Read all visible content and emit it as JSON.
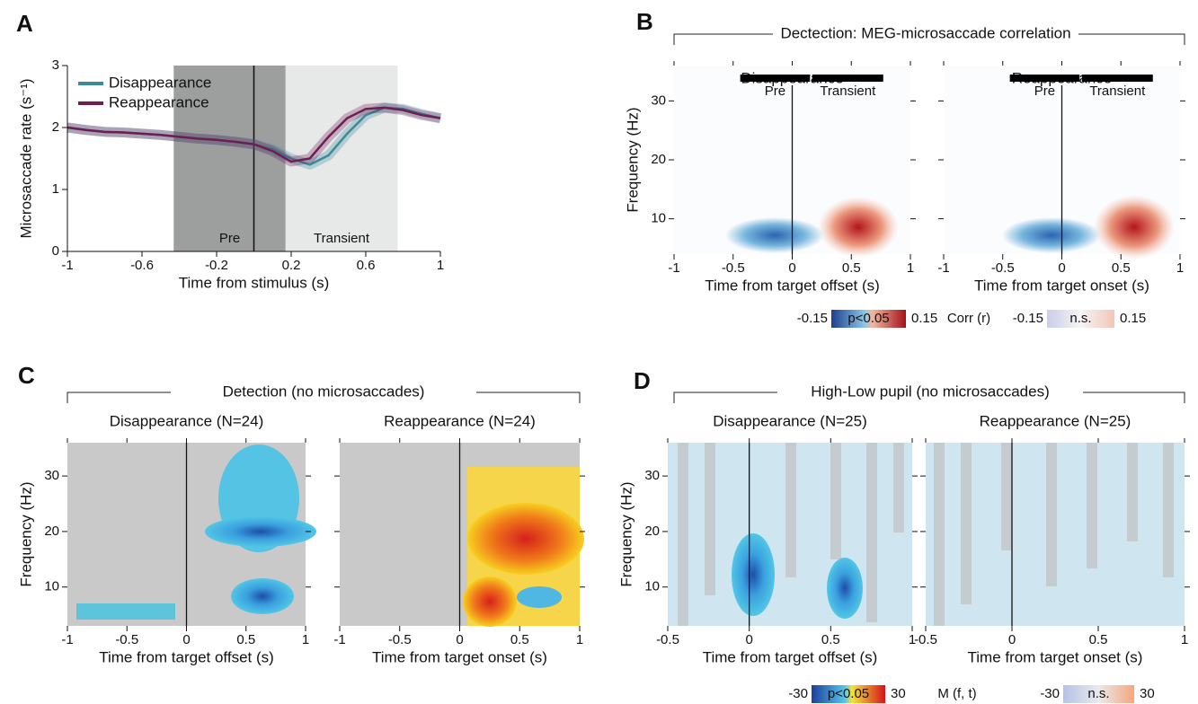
{
  "chart_data": [
    {
      "type": "line",
      "panel": "A",
      "xlabel": "Time from stimulus (s)",
      "ylabel": "Microsaccade rate (s⁻¹)",
      "x": [
        -1,
        -0.9,
        -0.8,
        -0.7,
        -0.6,
        -0.5,
        -0.4,
        -0.3,
        -0.2,
        -0.1,
        0,
        0.1,
        0.2,
        0.3,
        0.4,
        0.5,
        0.6,
        0.7,
        0.8,
        0.9,
        1
      ],
      "series": [
        {
          "name": "Disappearance",
          "color": "#3a8b9c",
          "values": [
            2.0,
            1.96,
            1.93,
            1.92,
            1.9,
            1.88,
            1.85,
            1.82,
            1.8,
            1.77,
            1.73,
            1.65,
            1.5,
            1.4,
            1.55,
            1.9,
            2.2,
            2.32,
            2.3,
            2.22,
            2.15
          ]
        },
        {
          "name": "Reappearance",
          "color": "#6e1f52",
          "values": [
            2.0,
            1.96,
            1.93,
            1.92,
            1.9,
            1.88,
            1.85,
            1.82,
            1.8,
            1.77,
            1.73,
            1.62,
            1.45,
            1.5,
            1.85,
            2.15,
            2.3,
            2.32,
            2.28,
            2.2,
            2.15
          ]
        }
      ],
      "shaded": [
        {
          "label": "Pre",
          "range": [
            -0.43,
            0.17
          ],
          "color": "#9d9e9e"
        },
        {
          "label": "Transient",
          "range": [
            0.17,
            0.77
          ],
          "color": "#e7e8e8"
        }
      ],
      "xlim": [
        -1,
        1
      ],
      "ylim": [
        0,
        3
      ],
      "xticks": [
        -1,
        -0.6,
        -0.2,
        0.2,
        0.6,
        1
      ],
      "yticks": [
        0,
        1,
        2,
        3
      ]
    },
    {
      "type": "heatmap",
      "panel": "B",
      "header": "Dectection: MEG-microsaccade correlation",
      "title": "Disappearance",
      "xlabel": "Time from target offset (s)",
      "ylabel": "Frequency (Hz)",
      "bars": [
        {
          "label": "Pre",
          "range": [
            -0.44,
            0.15
          ]
        },
        {
          "label": "Transient",
          "range": [
            0.17,
            0.77
          ]
        }
      ],
      "xlim": [
        -1,
        1
      ],
      "ylim": [
        4,
        36
      ],
      "xticks": [
        -1,
        -0.5,
        0,
        0.5,
        1
      ],
      "yticks": [
        10,
        20,
        30
      ],
      "colorbars": [
        {
          "min": -0.15,
          "label": "p<0.05",
          "max": 0.15
        },
        {
          "min": -0.15,
          "label": "n.s.",
          "max": 0.15
        }
      ],
      "colorbar_title": "Corr (r)"
    },
    {
      "type": "heatmap",
      "title": "Reappearance",
      "xlabel": "Time from target onset (s)",
      "bars": [
        {
          "label": "Pre",
          "range": [
            -0.44,
            0.15
          ]
        },
        {
          "label": "Transient",
          "range": [
            0.17,
            0.77
          ]
        }
      ],
      "xlim": [
        -1,
        1
      ],
      "ylim": [
        4,
        36
      ],
      "xticks": [
        -1,
        -0.5,
        0,
        0.5,
        1
      ],
      "yticks": [
        10,
        20,
        30
      ]
    },
    {
      "type": "heatmap",
      "panel": "C",
      "header": "Detection (no microsaccades)",
      "title": "Disappearance (N=24)",
      "xlabel": "Time from target offset (s)",
      "ylabel": "Frequency (Hz)",
      "xlim": [
        -1,
        1
      ],
      "ylim": [
        3,
        36
      ],
      "xticks": [
        -1,
        -0.5,
        0,
        0.5,
        1
      ],
      "yticks": [
        10,
        20,
        30
      ]
    },
    {
      "type": "heatmap",
      "title": "Reappearance (N=24)",
      "xlabel": "Time from target onset (s)",
      "xlim": [
        -1,
        1
      ],
      "ylim": [
        3,
        36
      ],
      "xticks": [
        -1,
        -0.5,
        0,
        0.5,
        1
      ],
      "yticks": [
        10,
        20,
        30
      ]
    },
    {
      "type": "heatmap",
      "panel": "D",
      "header": "High-Low pupil (no microsaccades)",
      "title": "Disappearance (N=25)",
      "xlabel": "Time from target offset (s)",
      "ylabel": "Frequency (Hz)",
      "xlim": [
        -0.5,
        1
      ],
      "ylim": [
        3,
        36
      ],
      "xticks": [
        -0.5,
        0,
        0.5,
        1
      ],
      "yticks": [
        10,
        20,
        30
      ],
      "colorbars": [
        {
          "min": -30,
          "label": "p<0.05",
          "max": 30
        },
        {
          "min": -30,
          "label": "n.s.",
          "max": 30
        }
      ],
      "colorbar_title": "M (f, t)"
    },
    {
      "type": "heatmap",
      "title": "Reappearance (N=25)",
      "xlabel": "Time from target onset (s)",
      "xlim": [
        -0.5,
        1
      ],
      "ylim": [
        3,
        36
      ],
      "xticks": [
        -0.5,
        0,
        0.5,
        1
      ],
      "yticks": [
        10,
        20,
        30
      ]
    }
  ]
}
